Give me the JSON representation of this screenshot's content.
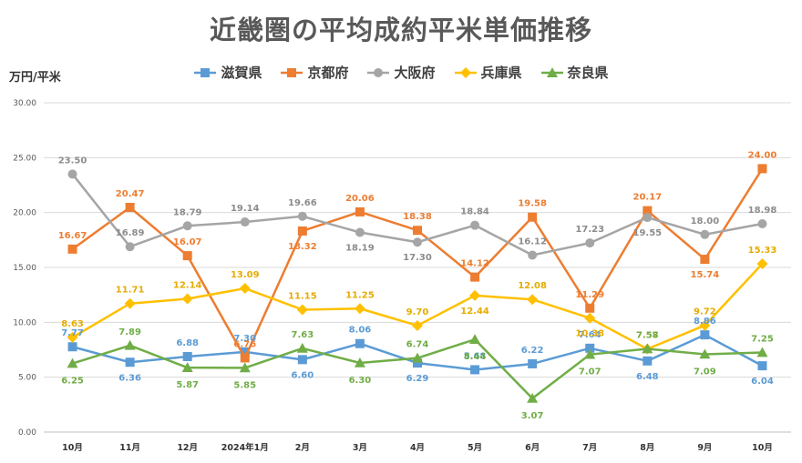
{
  "chart_data": {
    "type": "line",
    "title": "近畿圏の平均成約平米単価推移",
    "ylabel": "万円/平米",
    "xlabel": "",
    "ylim": [
      0,
      30
    ],
    "yticks": [
      "0.00",
      "5.00",
      "10.00",
      "15.00",
      "20.00",
      "25.00",
      "30.00"
    ],
    "categories": [
      "10月",
      "11月",
      "12月",
      "2024年1月",
      "2月",
      "3月",
      "4月",
      "5月",
      "6月",
      "7月",
      "8月",
      "9月",
      "10月"
    ],
    "legend_position": "top",
    "series": [
      {
        "name": "滋賀県",
        "color": "#5b9bd5",
        "marker": "square",
        "values": [
          7.77,
          6.36,
          6.88,
          7.3,
          6.6,
          8.06,
          6.29,
          5.68,
          6.22,
          7.64,
          6.48,
          8.86,
          6.04
        ],
        "labels": [
          "7.77",
          "6.36",
          "6.88",
          "7.30",
          "6.60",
          "8.06",
          "6.29",
          "5.68",
          "6.22",
          "7.64",
          "6.48",
          "8.86",
          "6.04"
        ]
      },
      {
        "name": "京都府",
        "color": "#ed7d31",
        "marker": "square",
        "values": [
          16.67,
          20.47,
          16.07,
          6.76,
          18.32,
          20.06,
          18.38,
          14.12,
          19.58,
          11.29,
          20.17,
          15.74,
          24.0
        ],
        "labels": [
          "16.67",
          "20.47",
          "16.07",
          "6.76",
          "18.32",
          "20.06",
          "18.38",
          "14.12",
          "19.58",
          "11.29",
          "20.17",
          "15.74",
          "24.00"
        ]
      },
      {
        "name": "大阪府",
        "color": "#a5a5a5",
        "marker": "circle",
        "values": [
          23.5,
          16.89,
          18.79,
          19.14,
          19.66,
          18.19,
          17.3,
          18.84,
          16.12,
          17.23,
          19.55,
          18.0,
          18.98
        ],
        "labels": [
          "23.50",
          "16.89",
          "18.79",
          "19.14",
          "19.66",
          "18.19",
          "17.30",
          "18.84",
          "16.12",
          "17.23",
          "19.55",
          "18.00",
          "18.98"
        ]
      },
      {
        "name": "兵庫県",
        "color": "#ffc000",
        "marker": "diamond",
        "values": [
          8.63,
          11.71,
          12.14,
          13.09,
          11.15,
          11.25,
          9.7,
          12.44,
          12.08,
          10.38,
          7.57,
          9.72,
          15.33
        ],
        "labels": [
          "8.63",
          "11.71",
          "12.14",
          "13.09",
          "11.15",
          "11.25",
          "9.70",
          "12.44",
          "12.08",
          "10.38",
          "7.57",
          "9.72",
          "15.33"
        ]
      },
      {
        "name": "奈良県",
        "color": "#70ad47",
        "marker": "triangle",
        "values": [
          6.25,
          7.89,
          5.87,
          5.85,
          7.63,
          6.3,
          6.74,
          8.44,
          3.07,
          7.07,
          7.58,
          7.09,
          7.25
        ],
        "labels": [
          "6.25",
          "7.89",
          "5.87",
          "5.85",
          "7.63",
          "6.30",
          "6.74",
          "8.44",
          "3.07",
          "7.07",
          "7.58",
          "7.09",
          "7.25"
        ]
      }
    ]
  }
}
